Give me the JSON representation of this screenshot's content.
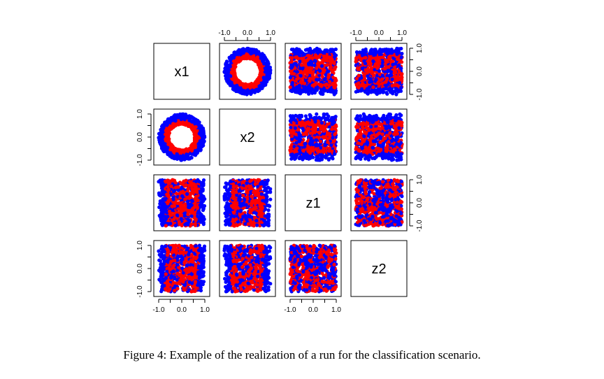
{
  "caption": "Figure 4: Example of the realization of a run for the classification scenario.",
  "chart_data": {
    "type": "scatter",
    "layout": "pairs-matrix",
    "variables": [
      "x1",
      "x2",
      "z1",
      "z2"
    ],
    "axis_range": [
      -1.0,
      1.0
    ],
    "tick_values": [
      -1.0,
      0.0,
      1.0
    ],
    "tick_labels": [
      "-1.0",
      "0.0",
      "1.0"
    ],
    "minor_ticks": [
      -0.5,
      0.5
    ],
    "grid": false,
    "legend": "none",
    "classes": [
      {
        "color": "#0000ff",
        "description": "outer ring 0.75 <= sqrt(x1^2+x2^2) <= 1.0"
      },
      {
        "color": "#ff0000",
        "description": "inner ring 0.55 <= sqrt(x1^2+x2^2) <= 0.75"
      }
    ],
    "points_per_class": 400,
    "axis_placement": {
      "top": [
        "x2",
        "z2"
      ],
      "bottom": [
        "x1",
        "z1"
      ],
      "left": [
        "x2",
        "z2"
      ],
      "right": [
        "x1",
        "z1"
      ]
    }
  }
}
